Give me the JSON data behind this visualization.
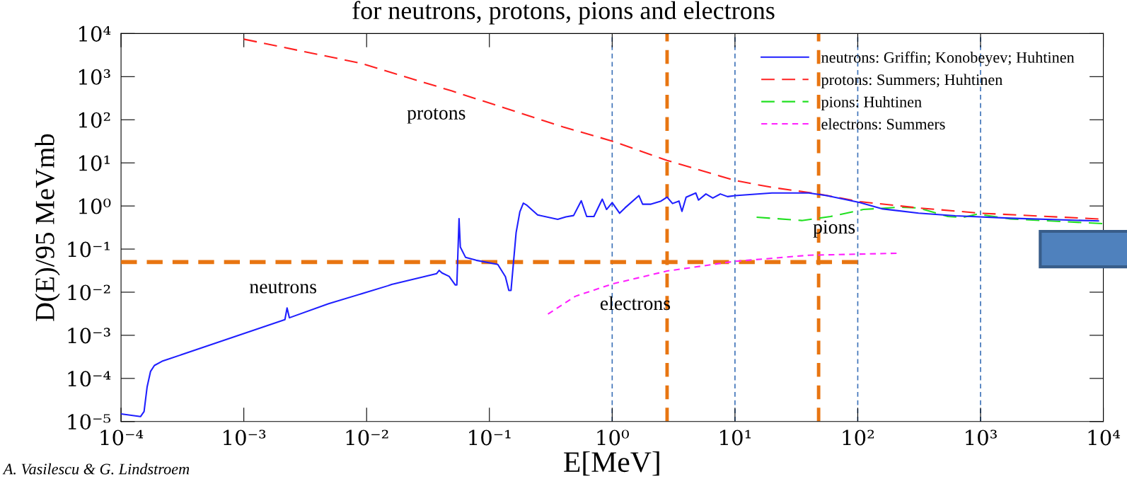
{
  "chart_data": {
    "type": "line",
    "title": "for neutrons, protons, pions and electrons",
    "xlabel": "E[MeV]",
    "ylabel": "D(E)/95 MeVmb",
    "log": "xy",
    "grid": false,
    "legend": "top right",
    "xlim": [
      0.0001,
      10000
    ],
    "ylim": [
      1e-05,
      10000
    ],
    "xticks": [
      {
        "value": 0.0001,
        "label": "10⁻⁴"
      },
      {
        "value": 0.001,
        "label": "10⁻³"
      },
      {
        "value": 0.01,
        "label": "10⁻²"
      },
      {
        "value": 0.1,
        "label": "10⁻¹"
      },
      {
        "value": 1,
        "label": "10⁰"
      },
      {
        "value": 10,
        "label": "10¹"
      },
      {
        "value": 100,
        "label": "10²"
      },
      {
        "value": 1000,
        "label": "10³"
      },
      {
        "value": 10000,
        "label": "10⁴"
      }
    ],
    "yticks": [
      {
        "value": 1e-05,
        "label": "10⁻⁵"
      },
      {
        "value": 0.0001,
        "label": "10⁻⁴"
      },
      {
        "value": 0.001,
        "label": "10⁻³"
      },
      {
        "value": 0.01,
        "label": "10⁻²"
      },
      {
        "value": 0.1,
        "label": "10⁻¹"
      },
      {
        "value": 1,
        "label": "10⁰"
      },
      {
        "value": 10,
        "label": "10¹"
      },
      {
        "value": 100,
        "label": "10²"
      },
      {
        "value": 1000,
        "label": "10³"
      },
      {
        "value": 10000,
        "label": "10⁴"
      }
    ],
    "series": [
      {
        "name": "neutrons: Griffin; Konobeyev; Huhtinen",
        "color": "#1f1fff",
        "line_style": "solid",
        "x": [
          0.0001,
          0.000144,
          0.000154,
          0.000163,
          0.000174,
          0.000187,
          0.000216,
          0.00216,
          0.00225,
          0.00235,
          0.0049,
          0.0149,
          0.016,
          0.0372,
          0.039,
          0.0411,
          0.047,
          0.0528,
          0.0543,
          0.0566,
          0.058,
          0.064,
          0.078,
          0.117,
          0.135,
          0.144,
          0.15,
          0.165,
          0.177,
          0.189,
          0.2,
          0.247,
          0.36,
          0.42,
          0.485,
          0.56,
          0.62,
          0.71,
          0.83,
          0.9,
          1.0,
          1.15,
          1.27,
          1.65,
          1.77,
          2.07,
          2.5,
          2.8,
          3.1,
          3.5,
          3.7,
          4.0,
          4.8,
          5.05,
          5.8,
          6.6,
          7.6,
          8.7,
          10,
          20,
          40,
          56,
          104,
          157,
          313,
          623,
          1750,
          9120
        ],
        "values": [
          1.5e-05,
          1.3e-05,
          1.7e-05,
          6.3e-05,
          0.000146,
          0.0002,
          0.00025,
          0.0023,
          0.0043,
          0.00255,
          0.0054,
          0.0141,
          0.0151,
          0.027,
          0.032,
          0.028,
          0.0233,
          0.0147,
          0.0147,
          0.51,
          0.111,
          0.064,
          0.055,
          0.044,
          0.023,
          0.011,
          0.011,
          0.24,
          0.73,
          1.16,
          1.06,
          0.62,
          0.49,
          0.56,
          0.6,
          1.32,
          0.57,
          0.57,
          1.44,
          0.83,
          1.2,
          0.68,
          0.9,
          1.74,
          1.1,
          1.1,
          1.3,
          1.6,
          1.14,
          1.3,
          0.75,
          1.6,
          2.0,
          1.37,
          1.9,
          1.53,
          1.9,
          1.65,
          1.74,
          2.0,
          2.0,
          1.74,
          1.2,
          0.86,
          0.68,
          0.59,
          0.52,
          0.45
        ]
      },
      {
        "name": "protons: Summers; Huhtinen",
        "color": "#ff2020",
        "line_style": "dashed",
        "x": [
          0.001,
          0.009,
          0.049,
          0.4,
          1,
          2.8,
          10,
          20,
          48,
          104,
          313,
          1000,
          9120
        ],
        "values": [
          7400,
          2040,
          470,
          68,
          32,
          11.4,
          3.9,
          2.7,
          1.9,
          1.26,
          0.9,
          0.68,
          0.5
        ]
      },
      {
        "name": "pions: Huhtinen",
        "color": "#20e020",
        "line_style": "dashed",
        "x": [
          15,
          35,
          60,
          111,
          222,
          313,
          543,
          714,
          942,
          1750,
          9800
        ],
        "values": [
          0.55,
          0.46,
          0.57,
          0.83,
          0.94,
          0.9,
          0.57,
          0.54,
          0.65,
          0.5,
          0.39
        ]
      },
      {
        "name": "electrons: Summers",
        "color": "#ff20ff",
        "line_style": "dotted",
        "x": [
          0.3,
          0.5,
          1,
          2.8,
          10,
          40,
          207
        ],
        "values": [
          0.0031,
          0.008,
          0.0155,
          0.031,
          0.052,
          0.072,
          0.08
        ]
      },
      {
        "color": "#e87511",
        "line_style": "dashed",
        "x": [
          0.0001,
          100
        ],
        "values": [
          0.05,
          0.05
        ]
      }
    ],
    "ref_lines": [
      {
        "axis": "x",
        "value": 2.8,
        "color": "#e87511",
        "line_style": "dashed"
      },
      {
        "axis": "x",
        "value": 48,
        "color": "#e87511",
        "line_style": "dashed"
      },
      {
        "axis": "x",
        "value": 1,
        "color": "#3d72b8",
        "line_style": "dotted"
      },
      {
        "axis": "x",
        "value": 10,
        "color": "#3d72b8",
        "line_style": "dotted"
      },
      {
        "axis": "x",
        "value": 100,
        "color": "#3d72b8",
        "line_style": "dotted"
      },
      {
        "axis": "x",
        "value": 1000,
        "color": "#3d72b8",
        "line_style": "dotted"
      }
    ],
    "annotations": [
      "protons",
      "neutrons",
      "electrons",
      "pions",
      "A. Vasilescu & G. Lindstroem"
    ]
  }
}
